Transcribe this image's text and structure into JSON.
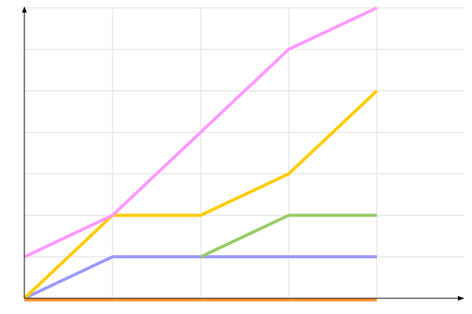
{
  "chart_data": {
    "type": "line",
    "title": "",
    "xlabel": "",
    "ylabel": "",
    "x": [
      0,
      1,
      2,
      3,
      4
    ],
    "xlim": [
      0,
      5
    ],
    "ylim": [
      0,
      7
    ],
    "grid": true,
    "legend": "none",
    "series": [
      {
        "color": "#ff9933",
        "values": [
          0,
          0,
          0,
          0,
          0
        ]
      },
      {
        "color": "#9999ff",
        "values": [
          0,
          1,
          1,
          1,
          1
        ]
      },
      {
        "color": "#99cc66",
        "values": [
          null,
          null,
          1,
          2,
          2
        ]
      },
      {
        "color": "#ffcc00",
        "values": [
          0,
          2,
          2,
          3,
          5
        ]
      },
      {
        "color": "#ff99ff",
        "values": [
          1,
          2,
          4,
          6,
          7
        ]
      }
    ]
  }
}
